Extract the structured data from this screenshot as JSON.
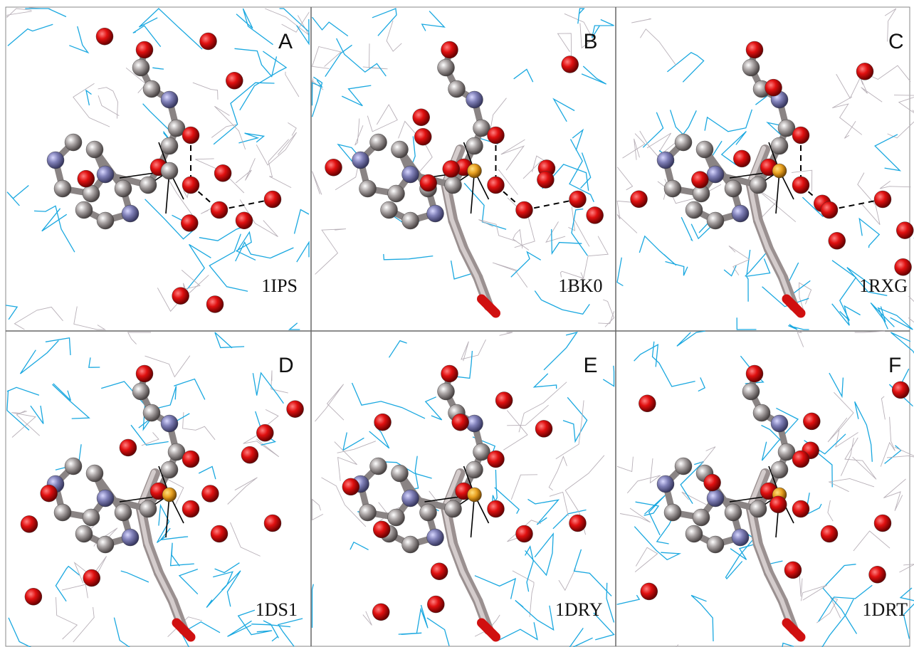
{
  "panels": [
    {
      "letter": "A",
      "code": "1IPS"
    },
    {
      "letter": "B",
      "code": "1BK0"
    },
    {
      "letter": "C",
      "code": "1RXG"
    },
    {
      "letter": "D",
      "code": "1DS1"
    },
    {
      "letter": "E",
      "code": "1DRY"
    },
    {
      "letter": "F",
      "code": "1DRT"
    }
  ]
}
